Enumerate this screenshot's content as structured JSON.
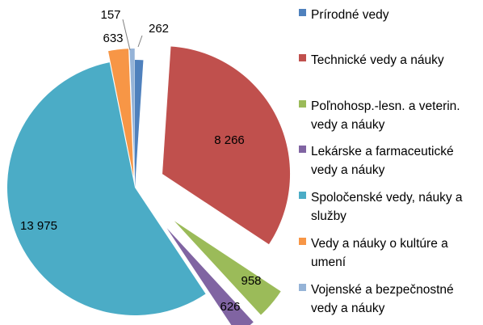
{
  "chart_data": {
    "type": "pie",
    "title": "",
    "slices": [
      {
        "name": "Prírodné vedy",
        "value": 262,
        "label": "262",
        "color": "#4F81BD"
      },
      {
        "name": "Technické vedy a náuky",
        "value": 8266,
        "label": "8 266",
        "color": "#C0504D"
      },
      {
        "name": "Poľnohosp.-lesn. a veterin. vedy a náuky",
        "value": 958,
        "label": "958",
        "color": "#9BBB59"
      },
      {
        "name": "Lekárske a farmaceutické vedy a náuky",
        "value": 626,
        "label": "626",
        "color": "#8064A2"
      },
      {
        "name": "Spoločenské vedy, náuky a služby",
        "value": 13975,
        "label": "13 975",
        "color": "#4BACC6"
      },
      {
        "name": "Vedy a náuky o kultúre a umení",
        "value": 633,
        "label": "633",
        "color": "#F79646"
      },
      {
        "name": "Vojenské a bezpečnostné vedy a náuky",
        "value": 157,
        "label": "157",
        "color": "#95B3D7"
      }
    ],
    "legend_position": "right",
    "exploded": true
  }
}
